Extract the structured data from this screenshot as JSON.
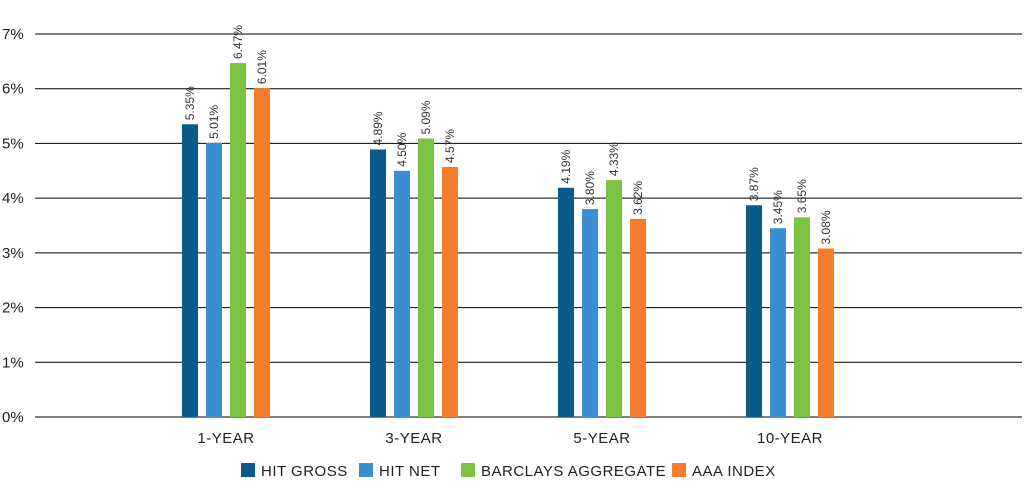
{
  "chart_data": {
    "type": "bar",
    "categories": [
      "1-YEAR",
      "3-YEAR",
      "5-YEAR",
      "10-YEAR"
    ],
    "series": [
      {
        "name": "HIT GROSS",
        "color": "#0b5a8c",
        "values": [
          5.35,
          4.89,
          4.19,
          3.87
        ],
        "labels": [
          "5.35%",
          "4.89%",
          "4.19%",
          "3.87%"
        ]
      },
      {
        "name": "HIT NET",
        "color": "#3a8fd0",
        "values": [
          5.01,
          4.5,
          3.8,
          3.45
        ],
        "labels": [
          "5.01%",
          "4.50%",
          "3.80%",
          "3.45%"
        ]
      },
      {
        "name": "BARCLAYS AGGREGATE",
        "color": "#7dc242",
        "values": [
          6.47,
          5.09,
          4.33,
          3.65
        ],
        "labels": [
          "6.47%",
          "5.09%",
          "4.33%",
          "3.65%"
        ]
      },
      {
        "name": "AAA INDEX",
        "color": "#f47c2b",
        "values": [
          6.01,
          4.57,
          3.62,
          3.08
        ],
        "labels": [
          "6.01%",
          "4.57%",
          "3.62%",
          "3.08%"
        ]
      }
    ],
    "y_ticks": [
      "0%",
      "1%",
      "2%",
      "3%",
      "4%",
      "5%",
      "6%",
      "7%"
    ],
    "ylim": [
      0,
      7
    ],
    "grid": true,
    "legend_position": "bottom-center",
    "title": "",
    "xlabel": "",
    "ylabel": ""
  }
}
